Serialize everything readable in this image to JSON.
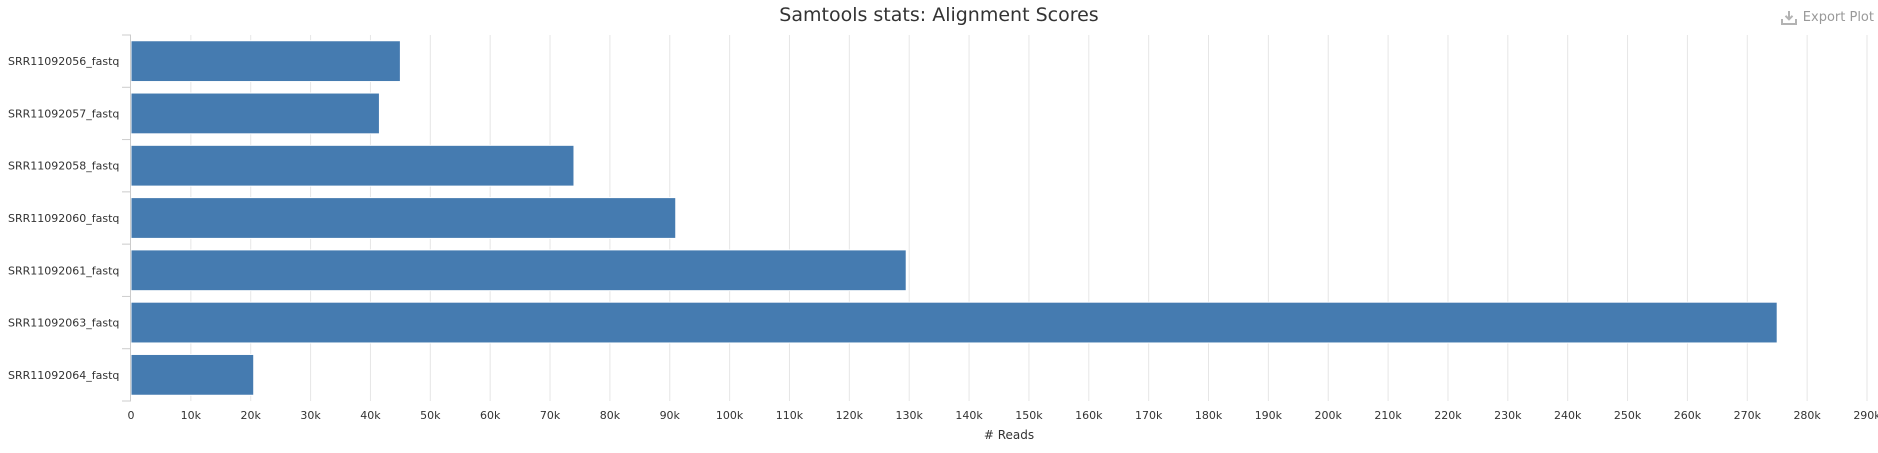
{
  "toolbar": {
    "export_label": "Export Plot",
    "export_icon": "download-icon"
  },
  "chart_data": {
    "type": "bar",
    "orientation": "horizontal",
    "title": "Samtools stats: Alignment Scores",
    "xlabel": "# Reads",
    "ylabel": "",
    "categories": [
      "SRR11092056_fastq",
      "SRR11092057_fastq",
      "SRR11092058_fastq",
      "SRR11092060_fastq",
      "SRR11092061_fastq",
      "SRR11092063_fastq",
      "SRR11092064_fastq"
    ],
    "values": [
      45000,
      41500,
      74000,
      91000,
      129500,
      275000,
      20500
    ],
    "xlim": [
      0,
      290000
    ],
    "xticks": [
      0,
      10000,
      20000,
      30000,
      40000,
      50000,
      60000,
      70000,
      80000,
      90000,
      100000,
      110000,
      120000,
      130000,
      140000,
      150000,
      160000,
      170000,
      180000,
      190000,
      200000,
      210000,
      220000,
      230000,
      240000,
      250000,
      260000,
      270000,
      280000,
      290000
    ],
    "xtick_labels": [
      "0",
      "10k",
      "20k",
      "30k",
      "40k",
      "50k",
      "60k",
      "70k",
      "80k",
      "90k",
      "100k",
      "110k",
      "120k",
      "130k",
      "140k",
      "150k",
      "160k",
      "170k",
      "180k",
      "190k",
      "200k",
      "210k",
      "220k",
      "230k",
      "240k",
      "250k",
      "260k",
      "270k",
      "280k",
      "290k"
    ],
    "bar_color": "#457bb0",
    "grid_color": "#e6e6e6",
    "grid": true,
    "legend": "none"
  }
}
